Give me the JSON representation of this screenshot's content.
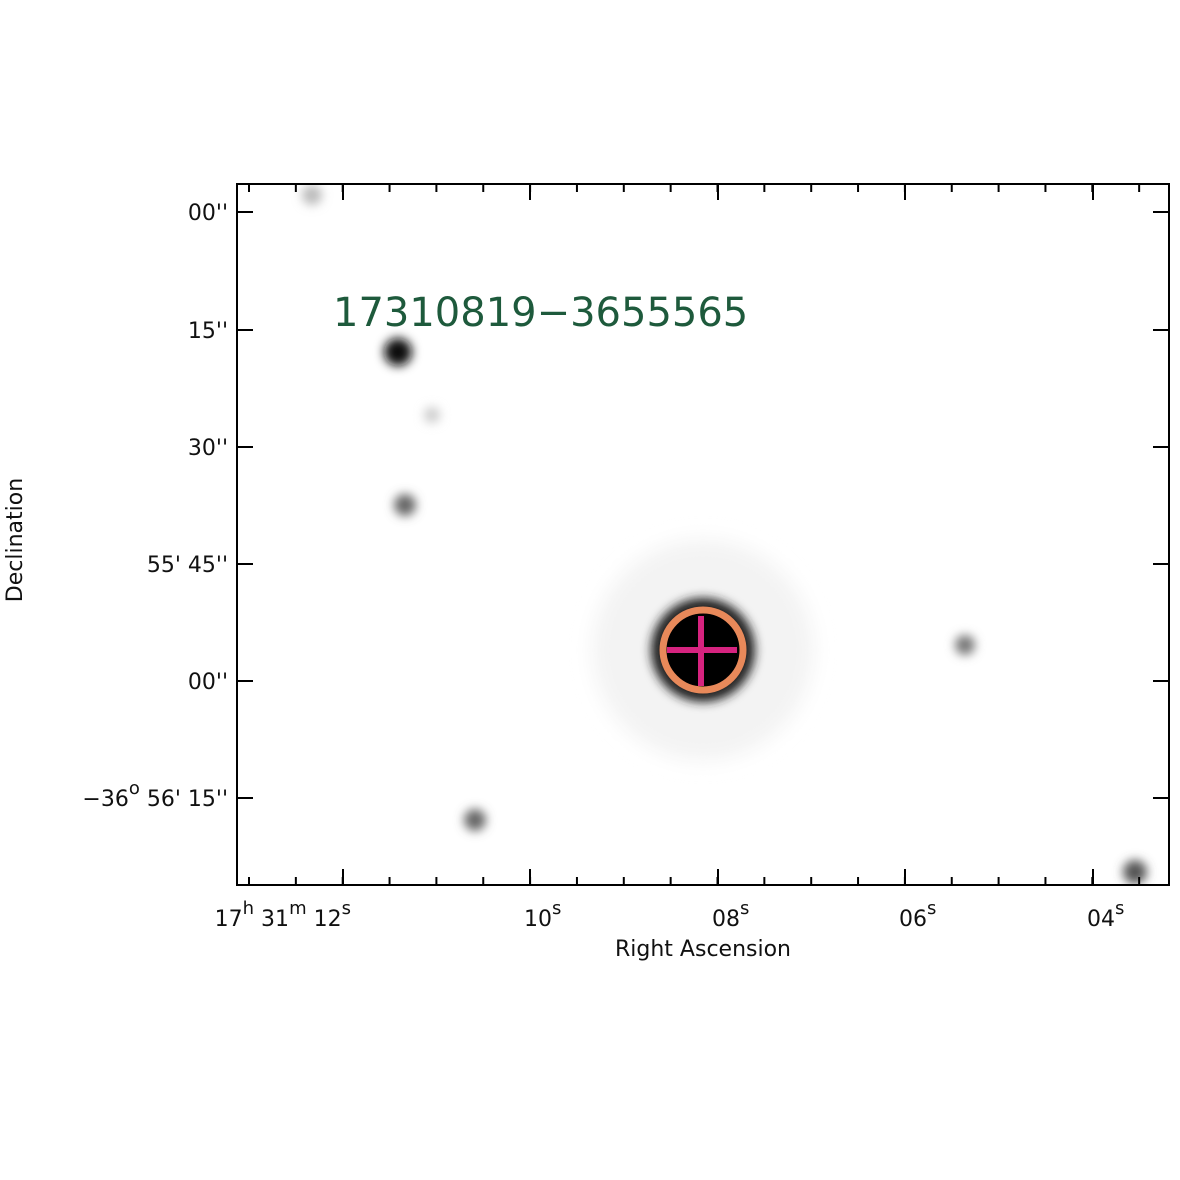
{
  "source_label": "17310819−3655565",
  "x_axis": {
    "label": "Right Ascension",
    "ticks": [
      [
        [
          "17",
          "h"
        ],
        [
          " 31",
          "m"
        ],
        [
          " 12",
          "s"
        ]
      ],
      [
        [
          "10",
          "s"
        ]
      ],
      [
        [
          "08",
          "s"
        ]
      ],
      [
        [
          "06",
          "s"
        ]
      ],
      [
        [
          "04",
          "s"
        ]
      ]
    ]
  },
  "y_axis": {
    "label": "Declination",
    "ticks": [
      [
        [
          "00''"
        ]
      ],
      [
        [
          "15''"
        ]
      ],
      [
        [
          "30''"
        ]
      ],
      [
        [
          "55' 45''"
        ]
      ],
      [
        [
          "00''"
        ]
      ],
      [
        [
          "−36",
          "o"
        ],
        [
          " 56' 15''"
        ]
      ]
    ]
  }
}
